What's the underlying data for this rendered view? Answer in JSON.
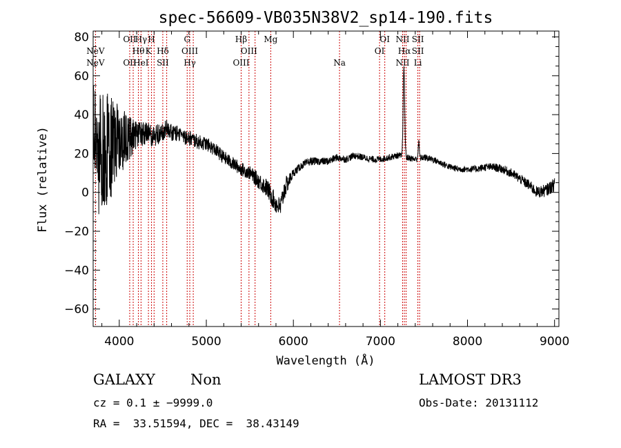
{
  "chart_data": {
    "type": "line",
    "title": "spec-56609-VB035N38V2_sp14-190.fits",
    "xlabel": "Wavelength (Å)",
    "ylabel": "Flux (relative)",
    "xlim": [
      3700,
      9050
    ],
    "ylim": [
      -69,
      83
    ],
    "xticks": [
      4000,
      5000,
      6000,
      7000,
      8000,
      9000
    ],
    "yticks": [
      -60,
      -40,
      -20,
      0,
      20,
      40,
      60,
      80
    ],
    "grid": false,
    "anchors": [
      [
        3700,
        30
      ],
      [
        3750,
        18
      ],
      [
        3800,
        22
      ],
      [
        3850,
        20
      ],
      [
        3900,
        24
      ],
      [
        4000,
        26
      ],
      [
        4100,
        28
      ],
      [
        4200,
        29
      ],
      [
        4300,
        30
      ],
      [
        4400,
        29
      ],
      [
        4500,
        31
      ],
      [
        4550,
        33
      ],
      [
        4600,
        31
      ],
      [
        4700,
        30
      ],
      [
        4800,
        28
      ],
      [
        4900,
        26
      ],
      [
        5000,
        25
      ],
      [
        5100,
        22
      ],
      [
        5200,
        18
      ],
      [
        5300,
        15
      ],
      [
        5400,
        12
      ],
      [
        5500,
        10
      ],
      [
        5600,
        6
      ],
      [
        5700,
        2
      ],
      [
        5800,
        -6
      ],
      [
        5850,
        -8
      ],
      [
        5900,
        2
      ],
      [
        6000,
        10
      ],
      [
        6100,
        14
      ],
      [
        6200,
        16
      ],
      [
        6300,
        16
      ],
      [
        6400,
        16
      ],
      [
        6500,
        18
      ],
      [
        6600,
        17
      ],
      [
        6700,
        19
      ],
      [
        6800,
        18
      ],
      [
        6900,
        17
      ],
      [
        7000,
        17
      ],
      [
        7100,
        18
      ],
      [
        7200,
        19
      ],
      [
        7300,
        18
      ],
      [
        7400,
        17
      ],
      [
        7500,
        18
      ],
      [
        7600,
        17
      ],
      [
        7700,
        15
      ],
      [
        7800,
        13
      ],
      [
        7900,
        12
      ],
      [
        8000,
        12
      ],
      [
        8100,
        12
      ],
      [
        8200,
        13
      ],
      [
        8300,
        13
      ],
      [
        8400,
        12
      ],
      [
        8500,
        10
      ],
      [
        8600,
        7
      ],
      [
        8700,
        4
      ],
      [
        8800,
        0
      ],
      [
        8900,
        1
      ],
      [
        9000,
        4
      ]
    ],
    "noise": [
      [
        3700,
        22
      ],
      [
        3850,
        22
      ],
      [
        3950,
        17
      ],
      [
        4000,
        13
      ],
      [
        4100,
        9
      ],
      [
        4200,
        5
      ],
      [
        4500,
        3.5
      ],
      [
        5000,
        2.5
      ],
      [
        5500,
        2.5
      ],
      [
        5700,
        3.5
      ],
      [
        5900,
        4
      ],
      [
        6000,
        1.5
      ],
      [
        7000,
        1.2
      ],
      [
        8000,
        1.2
      ],
      [
        8600,
        1.8
      ],
      [
        9000,
        2.5
      ]
    ],
    "emission_lines": [
      {
        "center": 7270,
        "height": 45,
        "width": 9
      },
      {
        "center": 7440,
        "height": 8,
        "width": 7
      }
    ],
    "spectral_lines": [
      {
        "wavelength": 3727,
        "labels": [
          {
            "text": "NeV",
            "row": 2
          },
          {
            "text": "NeV",
            "row": 3
          }
        ]
      },
      {
        "wavelength": 4120,
        "labels": [
          {
            "text": "OII",
            "row": 1
          },
          {
            "text": "OII",
            "row": 3
          }
        ]
      },
      {
        "wavelength": 4160,
        "labels": []
      },
      {
        "wavelength": 4220,
        "labels": [
          {
            "text": "Hθ",
            "row": 2
          }
        ]
      },
      {
        "wavelength": 4250,
        "labels": [
          {
            "text": "Hγ",
            "row": 1
          },
          {
            "text": "HeI",
            "row": 3
          }
        ]
      },
      {
        "wavelength": 4335,
        "labels": [
          {
            "text": "K",
            "row": 2
          }
        ]
      },
      {
        "wavelength": 4370,
        "labels": [
          {
            "text": "H",
            "row": 1
          }
        ]
      },
      {
        "wavelength": 4400,
        "labels": []
      },
      {
        "wavelength": 4500,
        "labels": [
          {
            "text": "Hδ",
            "row": 2
          },
          {
            "text": "SII",
            "row": 3
          }
        ]
      },
      {
        "wavelength": 4545,
        "labels": []
      },
      {
        "wavelength": 4780,
        "labels": [
          {
            "text": "G",
            "row": 1
          }
        ]
      },
      {
        "wavelength": 4810,
        "labels": [
          {
            "text": "OIII",
            "row": 2
          },
          {
            "text": "Hγ",
            "row": 3
          }
        ]
      },
      {
        "wavelength": 4850,
        "labels": []
      },
      {
        "wavelength": 5400,
        "labels": [
          {
            "text": "Hβ",
            "row": 1
          },
          {
            "text": "OIII",
            "row": 3
          }
        ]
      },
      {
        "wavelength": 5490,
        "labels": [
          {
            "text": "OIII",
            "row": 2
          }
        ]
      },
      {
        "wavelength": 5560,
        "labels": []
      },
      {
        "wavelength": 5740,
        "labels": [
          {
            "text": "Mg",
            "row": 1
          }
        ]
      },
      {
        "wavelength": 6530,
        "labels": [
          {
            "text": "Na",
            "row": 3
          }
        ]
      },
      {
        "wavelength": 6990,
        "labels": [
          {
            "text": "OI",
            "row": 2
          }
        ]
      },
      {
        "wavelength": 7050,
        "labels": [
          {
            "text": "OI",
            "row": 1
          }
        ]
      },
      {
        "wavelength": 7255,
        "labels": [
          {
            "text": "NII",
            "row": 1
          },
          {
            "text": "NII",
            "row": 3
          }
        ]
      },
      {
        "wavelength": 7275,
        "labels": [
          {
            "text": "Hα",
            "row": 2
          }
        ]
      },
      {
        "wavelength": 7295,
        "labels": []
      },
      {
        "wavelength": 7430,
        "labels": [
          {
            "text": "SII",
            "row": 1
          },
          {
            "text": "SII",
            "row": 2
          },
          {
            "text": "Li",
            "row": 3
          }
        ]
      },
      {
        "wavelength": 7450,
        "labels": []
      }
    ],
    "marker_color": "#cc0000",
    "line_color": "#000000"
  },
  "info": {
    "class": "GALAXY",
    "subclass": "Non",
    "survey": "LAMOST DR3",
    "cz": "cz = 0.1 ± −9999.0",
    "obs_date": "Obs-Date: 20131112",
    "coords": "RA =  33.51594, DEC =  38.43149"
  }
}
